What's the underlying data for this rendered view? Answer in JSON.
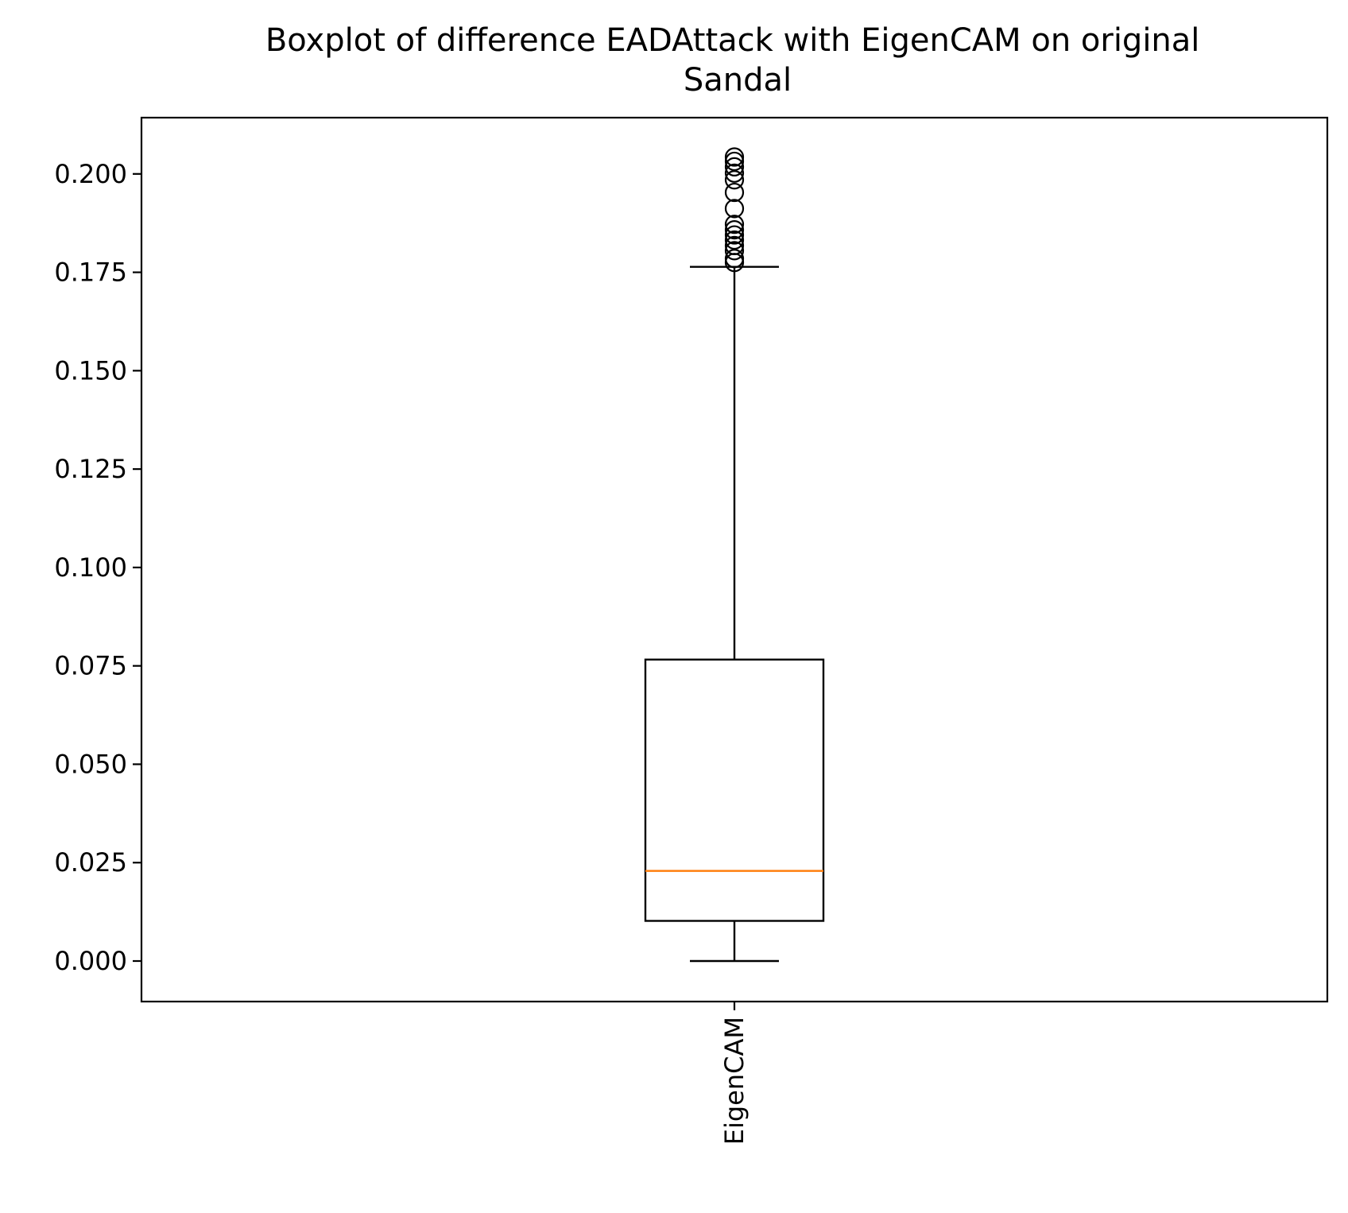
{
  "chart_data": {
    "type": "boxplot",
    "title": "Boxplot of difference EADAttack with EigenCAM on original\nSandal",
    "xlabel": "",
    "ylabel": "",
    "categories": [
      "EigenCAM"
    ],
    "ylim": [
      -0.0103,
      0.2143
    ],
    "yticks": [
      0.0,
      0.025,
      0.05,
      0.075,
      0.1,
      0.125,
      0.15,
      0.175,
      0.2
    ],
    "ytick_labels": [
      "0.000",
      "0.025",
      "0.050",
      "0.075",
      "0.100",
      "0.125",
      "0.150",
      "0.175",
      "0.200"
    ],
    "grid": false,
    "series": [
      {
        "category": "EigenCAM",
        "whisker_low": 0.0,
        "q1": 0.0102,
        "median": 0.0229,
        "q3": 0.0766,
        "whisker_high": 0.1764,
        "outliers": [
          0.1775,
          0.1785,
          0.1805,
          0.1818,
          0.1832,
          0.1845,
          0.1858,
          0.1872,
          0.1912,
          0.1953,
          0.1985,
          0.2002,
          0.2018,
          0.2032,
          0.2043
        ]
      }
    ],
    "colors": {
      "box": "#000000",
      "median": "#ff7f0e",
      "outlier": "#000000"
    }
  }
}
